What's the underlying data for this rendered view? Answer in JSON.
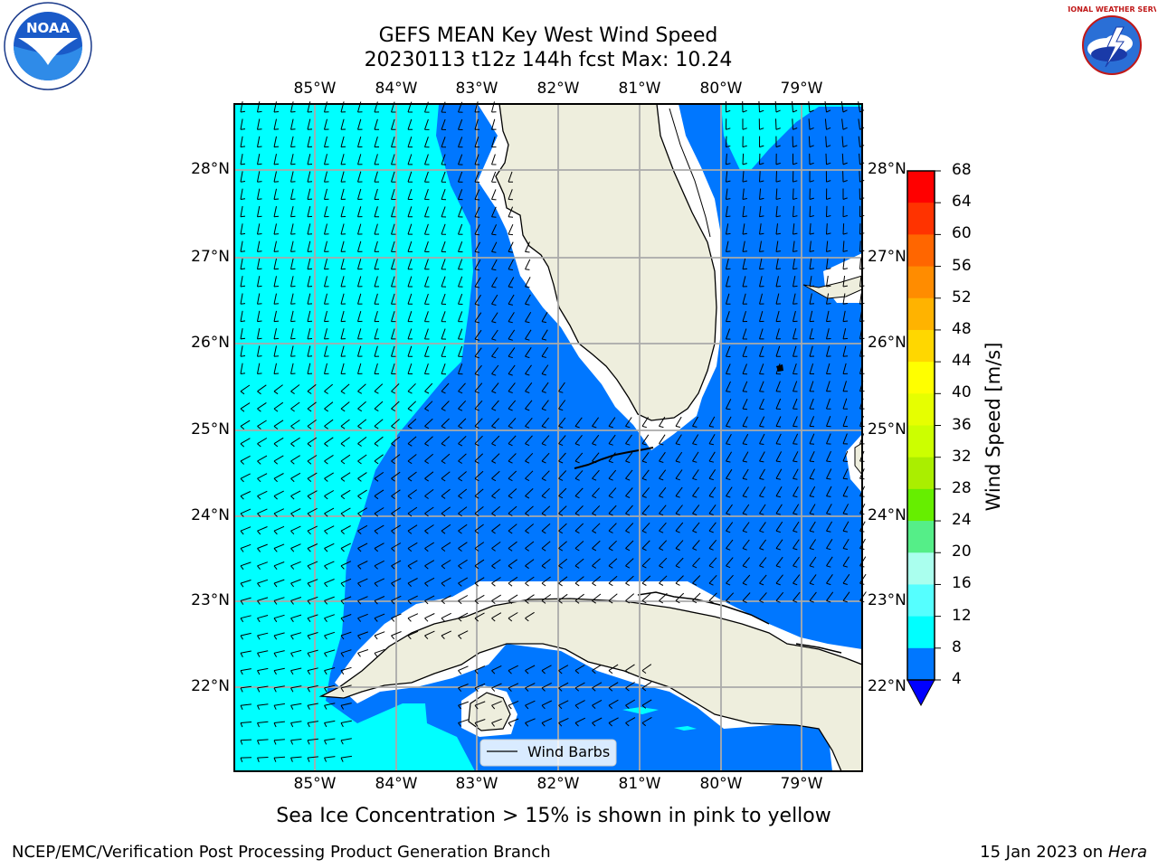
{
  "title_line1": "GEFS MEAN Key West Wind Speed",
  "title_line2": "20230113 t12z 144h fcst   Max: 10.24",
  "lon_labels": [
    "85°W",
    "84°W",
    "83°W",
    "82°W",
    "81°W",
    "80°W",
    "79°W"
  ],
  "lat_labels": [
    "28°N",
    "27°N",
    "26°N",
    "25°N",
    "24°N",
    "23°N",
    "22°N"
  ],
  "colorbar": {
    "label": "Wind Speed [m/s]",
    "ticks": [
      "68",
      "64",
      "60",
      "56",
      "52",
      "48",
      "44",
      "40",
      "36",
      "32",
      "28",
      "24",
      "20",
      "16",
      "12",
      "8",
      "4"
    ],
    "colors": [
      "#ff0000",
      "#ff3300",
      "#ff6600",
      "#ff8c00",
      "#ffb300",
      "#ffd700",
      "#ffff00",
      "#e6ff00",
      "#ccff00",
      "#aaee00",
      "#66ee00",
      "#00ee00",
      "#00dd66",
      "#55ff88",
      "#aaffee",
      "#55ffff",
      "#00ffff",
      "#0077ff"
    ],
    "under_color": "#0000ff"
  },
  "legend_label": "Wind Barbs",
  "caption": "Sea Ice Concentration > 15% is shown in pink to yellow",
  "footer_left": "NCEP/EMC/Verification Post Processing Product Generation Branch",
  "footer_date": "15 Jan 2023 on ",
  "footer_machine": "Hera",
  "logos": {
    "noaa_text": "NOAA",
    "nws_text": "NATIONAL WEATHER SERVICE"
  },
  "colors": {
    "land": "#eeeedd",
    "ocean_low": "#0077ff",
    "ocean_mid": "#00ffff",
    "coast_white": "#ffffff",
    "grid": "#aaaaaa"
  }
}
